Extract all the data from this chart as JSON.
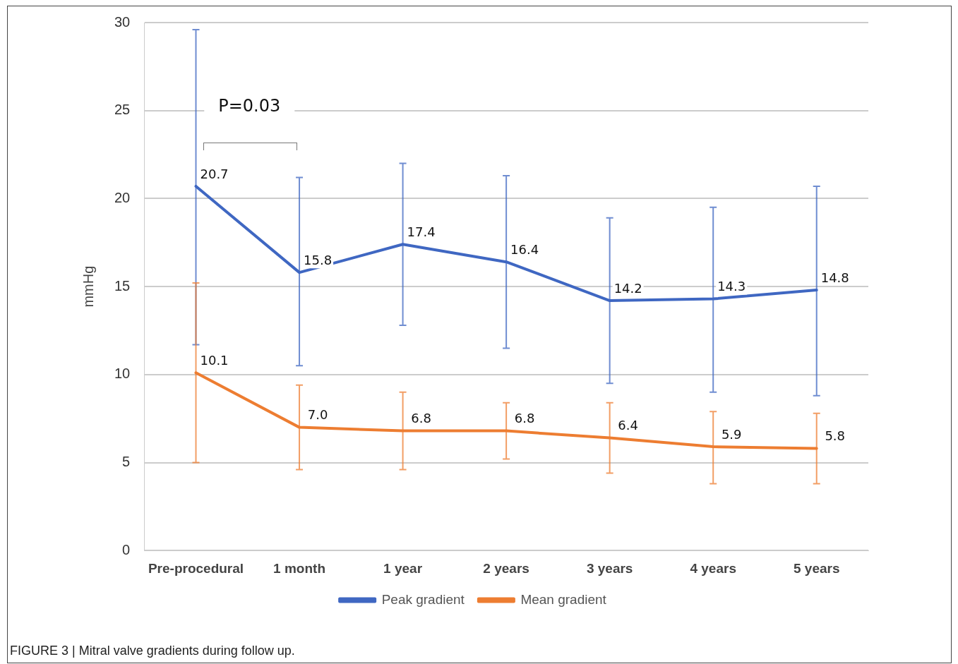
{
  "chart_data": {
    "type": "line",
    "ylabel": "mmHg",
    "categories": [
      "Pre-procedural",
      "1 month",
      "1 year",
      "2 years",
      "3 years",
      "4 years",
      "5 years"
    ],
    "series": [
      {
        "name": "Peak gradient",
        "color": "#3f67c2",
        "values": [
          20.7,
          15.8,
          17.4,
          16.4,
          14.2,
          14.3,
          14.8
        ],
        "value_labels": [
          "20.7",
          "15.8",
          "17.4",
          "16.4",
          "14.2",
          "14.3",
          "14.8"
        ],
        "errors": [
          [
            11.7,
            29.6
          ],
          [
            10.5,
            21.2
          ],
          [
            12.8,
            22.0
          ],
          [
            11.5,
            21.3
          ],
          [
            9.5,
            18.9
          ],
          [
            9.0,
            19.5
          ],
          [
            8.8,
            20.7
          ]
        ]
      },
      {
        "name": "Mean gradient",
        "color": "#ed7d31",
        "values": [
          10.1,
          7.0,
          6.8,
          6.8,
          6.4,
          5.9,
          5.8
        ],
        "value_labels": [
          "10.1",
          "7.0",
          "6.8",
          "6.8",
          "6.4",
          "5.9",
          "5.8"
        ],
        "errors": [
          [
            5.0,
            15.2
          ],
          [
            4.6,
            9.4
          ],
          [
            4.6,
            9.0
          ],
          [
            5.2,
            8.4
          ],
          [
            4.4,
            8.4
          ],
          [
            3.8,
            7.9
          ],
          [
            3.8,
            7.8
          ]
        ]
      }
    ],
    "ylim": [
      0,
      30
    ],
    "yticks": [
      0,
      5,
      10,
      15,
      20,
      25,
      30
    ],
    "grid": "y",
    "legend": "bottom",
    "marker": "none",
    "line_style": "solid",
    "annotations": [
      "P=0.03",
      "FIGURE 3 | Mitral valve gradients during follow up."
    ]
  }
}
